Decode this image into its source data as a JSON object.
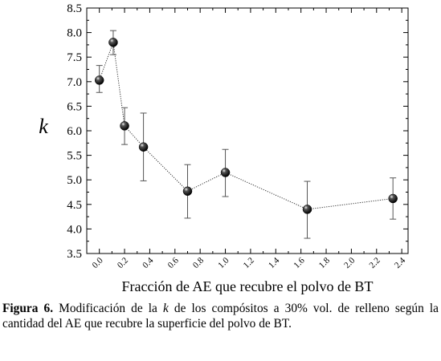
{
  "chart_data": {
    "type": "scatter",
    "xlabel": "Fracción de AE que recubre el polvo de BT",
    "ylabel": "k",
    "xlim": [
      -0.1,
      2.45
    ],
    "ylim": [
      3.5,
      8.5
    ],
    "x_ticks": [
      0.0,
      0.2,
      0.4,
      0.6,
      0.8,
      1.0,
      1.2,
      1.4,
      1.6,
      1.8,
      2.0,
      2.2,
      2.4
    ],
    "x_tick_labels": [
      "0.0",
      "0.2",
      "0.4",
      "0.6",
      "0.8",
      "1.0",
      "1.2",
      "1.4",
      "1.6",
      "1.8",
      "2.0",
      "2.2",
      "2.4"
    ],
    "y_ticks": [
      3.5,
      4.0,
      4.5,
      5.0,
      5.5,
      6.0,
      6.5,
      7.0,
      7.5,
      8.0,
      8.5
    ],
    "y_tick_labels": [
      "3.5",
      "4.0",
      "4.5",
      "5.0",
      "5.5",
      "6.0",
      "6.5",
      "7.0",
      "7.5",
      "8.0",
      "8.5"
    ],
    "grid": false,
    "line_style": "dotted",
    "marker": "black sphere",
    "series": [
      {
        "x": [
          0.0,
          0.11,
          0.2,
          0.35,
          0.7,
          1.0,
          1.65,
          2.33
        ],
        "y": [
          7.03,
          7.8,
          6.1,
          5.67,
          4.77,
          5.15,
          4.4,
          4.62
        ],
        "error_low": [
          6.78,
          7.55,
          5.72,
          4.98,
          4.22,
          4.66,
          3.81,
          4.2
        ],
        "error_high": [
          7.33,
          8.04,
          6.47,
          6.36,
          5.31,
          5.62,
          4.97,
          5.04
        ]
      }
    ]
  },
  "caption": {
    "label": "Figura 6.",
    "part1": " Modificación de la ",
    "italic": "k",
    "part2": " de los compósitos a 30% vol. de relleno según la cantidad del AE que recubre la superficie del polvo de BT."
  }
}
